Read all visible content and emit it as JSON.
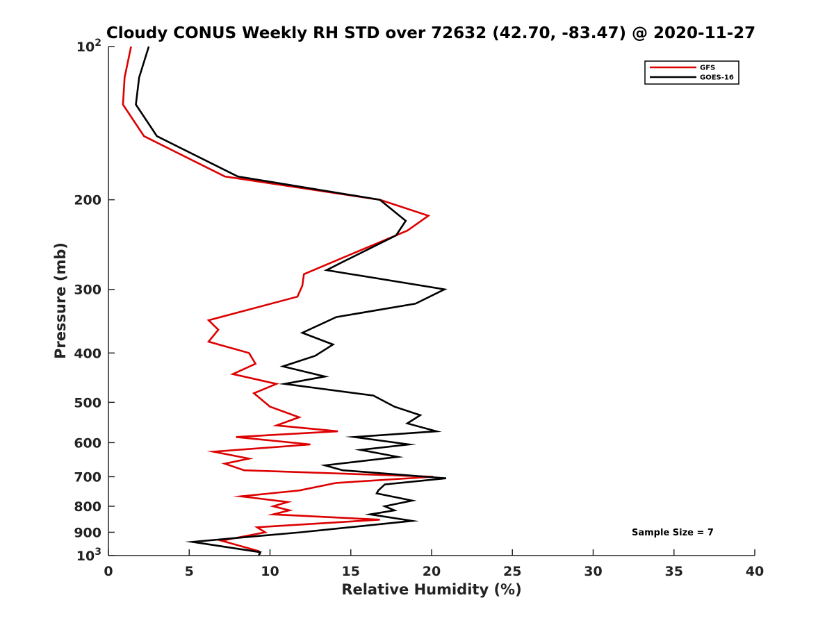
{
  "chart_data": {
    "type": "line",
    "title": "Cloudy CONUS Weekly RH STD over 72632 (42.70, -83.47) @ 2020-11-27",
    "xlabel": "Relative Humidity (%)",
    "ylabel": "Pressure (mb)",
    "xlim": [
      0,
      40
    ],
    "ylim": [
      100,
      1000
    ],
    "y_scale": "log",
    "y_inverted": true,
    "grid": false,
    "legend_position": "top-right",
    "x_ticks": [
      0,
      5,
      10,
      15,
      20,
      25,
      30,
      35,
      40
    ],
    "y_ticks": [
      100,
      200,
      300,
      400,
      500,
      600,
      700,
      800,
      900,
      1000
    ],
    "y_tick_labels": [
      {
        "base": "10",
        "exp": "2"
      },
      {
        "base": "200",
        "exp": ""
      },
      {
        "base": "300",
        "exp": ""
      },
      {
        "base": "400",
        "exp": ""
      },
      {
        "base": "500",
        "exp": ""
      },
      {
        "base": "600",
        "exp": ""
      },
      {
        "base": "700",
        "exp": ""
      },
      {
        "base": "800",
        "exp": ""
      },
      {
        "base": "900",
        "exp": ""
      },
      {
        "base": "10",
        "exp": "3"
      }
    ],
    "annotation": "Sample Size = 7",
    "series": [
      {
        "name": "GFS",
        "color": "#dd0000",
        "points": [
          [
            1.4,
            100
          ],
          [
            1.0,
            115
          ],
          [
            0.9,
            130
          ],
          [
            2.2,
            150
          ],
          [
            7.2,
            180
          ],
          [
            16.8,
            200
          ],
          [
            19.8,
            215
          ],
          [
            18.5,
            230
          ],
          [
            14.5,
            260
          ],
          [
            12.1,
            280
          ],
          [
            12.0,
            295
          ],
          [
            11.7,
            310
          ],
          [
            6.2,
            345
          ],
          [
            6.8,
            360
          ],
          [
            6.2,
            380
          ],
          [
            8.7,
            400
          ],
          [
            9.1,
            420
          ],
          [
            7.7,
            440
          ],
          [
            10.4,
            460
          ],
          [
            9.0,
            480
          ],
          [
            10.0,
            510
          ],
          [
            11.8,
            535
          ],
          [
            10.4,
            555
          ],
          [
            14.2,
            570
          ],
          [
            7.9,
            585
          ],
          [
            12.5,
            605
          ],
          [
            6.5,
            625
          ],
          [
            8.7,
            645
          ],
          [
            7.2,
            660
          ],
          [
            8.4,
            680
          ],
          [
            20.1,
            700
          ],
          [
            14.1,
            720
          ],
          [
            11.8,
            745
          ],
          [
            8.2,
            765
          ],
          [
            11.1,
            785
          ],
          [
            10.2,
            800
          ],
          [
            11.2,
            815
          ],
          [
            10.2,
            830
          ],
          [
            16.8,
            850
          ],
          [
            9.2,
            880
          ],
          [
            9.7,
            900
          ],
          [
            7.0,
            935
          ],
          [
            9.3,
            980
          ],
          [
            9.4,
            995
          ]
        ]
      },
      {
        "name": "GOES-16",
        "color": "#000000",
        "points": [
          [
            2.5,
            100
          ],
          [
            1.9,
            115
          ],
          [
            1.7,
            130
          ],
          [
            3.0,
            150
          ],
          [
            8.0,
            180
          ],
          [
            16.8,
            200
          ],
          [
            18.4,
            220
          ],
          [
            17.8,
            235
          ],
          [
            14.5,
            265
          ],
          [
            13.5,
            275
          ],
          [
            20.8,
            300
          ],
          [
            19.0,
            320
          ],
          [
            14.1,
            340
          ],
          [
            12.0,
            365
          ],
          [
            13.9,
            385
          ],
          [
            12.8,
            405
          ],
          [
            10.8,
            425
          ],
          [
            13.4,
            445
          ],
          [
            10.9,
            460
          ],
          [
            16.4,
            485
          ],
          [
            17.7,
            510
          ],
          [
            19.3,
            530
          ],
          [
            18.5,
            550
          ],
          [
            20.3,
            570
          ],
          [
            15.2,
            585
          ],
          [
            18.6,
            605
          ],
          [
            15.6,
            620
          ],
          [
            17.9,
            640
          ],
          [
            13.4,
            665
          ],
          [
            14.5,
            680
          ],
          [
            20.9,
            705
          ],
          [
            17.1,
            725
          ],
          [
            16.7,
            745
          ],
          [
            16.6,
            755
          ],
          [
            18.8,
            780
          ],
          [
            17.1,
            800
          ],
          [
            17.7,
            815
          ],
          [
            16.2,
            830
          ],
          [
            18.8,
            855
          ],
          [
            11.9,
            900
          ],
          [
            5.2,
            940
          ],
          [
            9.4,
            985
          ],
          [
            9.3,
            1000
          ]
        ]
      }
    ]
  }
}
